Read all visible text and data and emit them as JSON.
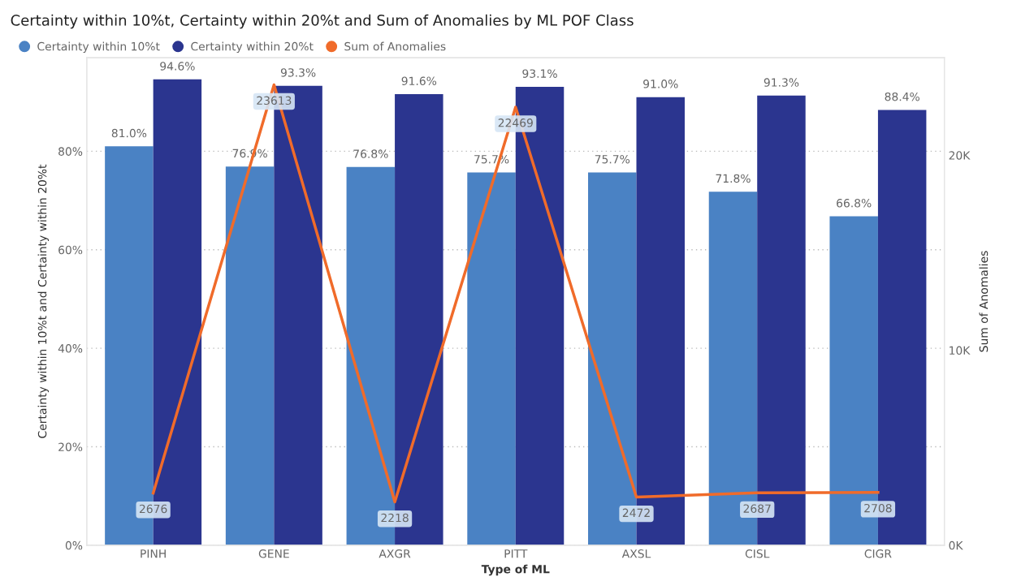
{
  "chart_data": {
    "type": "bar",
    "title": "Certainty within 10%t, Certainty within 20%t and Sum of Anomalies by ML POF Class",
    "xlabel": "Type of ML",
    "ylabel": "Certainty within 10%t and Certainty within 20%t",
    "y2label": "Sum of Anomalies",
    "categories": [
      "PINH",
      "GENE",
      "AXGR",
      "PITT",
      "AXSL",
      "CISL",
      "CIGR"
    ],
    "series": [
      {
        "name": "Certainty within 10%t",
        "color": "#4a82c4",
        "values": [
          81.0,
          76.9,
          76.8,
          75.7,
          75.7,
          71.8,
          66.8
        ],
        "value_labels": [
          "81.0%",
          "76.9%",
          "76.8%",
          "75.7%",
          "75.7%",
          "71.8%",
          "66.8%"
        ]
      },
      {
        "name": "Certainty within 20%t",
        "color": "#2b358f",
        "values": [
          94.6,
          93.3,
          91.6,
          93.1,
          91.0,
          91.3,
          88.4
        ],
        "value_labels": [
          "94.6%",
          "93.3%",
          "91.6%",
          "93.1%",
          "91.0%",
          "91.3%",
          "88.4%"
        ]
      },
      {
        "name": "Sum of Anomalies",
        "type": "line",
        "axis": "y2",
        "color": "#f06b2a",
        "values": [
          2676,
          23613,
          2218,
          22469,
          2472,
          2687,
          2708
        ],
        "value_labels": [
          "2676",
          "23613",
          "2218",
          "22469",
          "2472",
          "2687",
          "2708"
        ]
      }
    ],
    "ylim": [
      0,
      99
    ],
    "yticks": [
      {
        "value": 0,
        "label": "0%"
      },
      {
        "value": 20,
        "label": "20%"
      },
      {
        "value": 40,
        "label": "40%"
      },
      {
        "value": 60,
        "label": "60%"
      },
      {
        "value": 80,
        "label": "80%"
      }
    ],
    "y2lim": [
      0,
      25000
    ],
    "y2ticks": [
      {
        "value": 0,
        "label": "0K"
      },
      {
        "value": 10000,
        "label": "10K"
      },
      {
        "value": 20000,
        "label": "20K"
      }
    ],
    "grid": "y",
    "legend": "top left",
    "marker": "none",
    "line_style": "solid"
  }
}
